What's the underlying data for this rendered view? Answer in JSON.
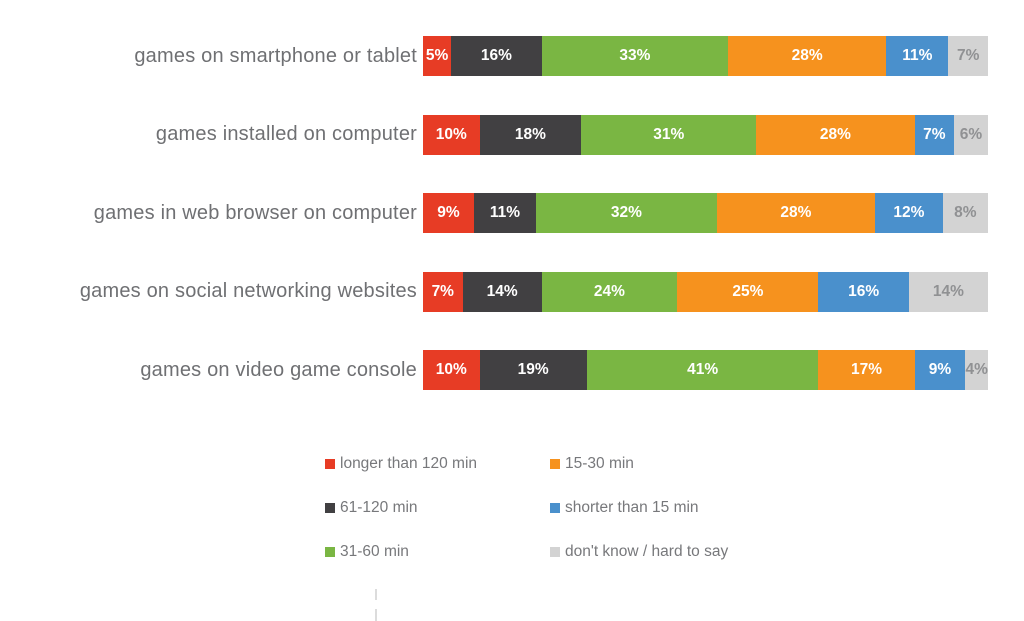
{
  "chart_data": {
    "type": "bar",
    "variant": "horizontal-stacked",
    "title": "",
    "xlabel": "",
    "ylabel": "",
    "xlim": [
      0,
      100
    ],
    "value_suffix": "%",
    "grid": false,
    "legend_position": "bottom-two-columns",
    "categories": [
      "games on smartphone or tablet",
      "games installed on computer",
      "games in web browser on computer",
      "games on social networking websites",
      "games on video game console"
    ],
    "series": [
      {
        "name": "longer than 120 min",
        "color": "#e73c25",
        "label_color": "#ffffff",
        "values": [
          5,
          10,
          9,
          7,
          10
        ]
      },
      {
        "name": "61-120 min",
        "color": "#414042",
        "label_color": "#ffffff",
        "values": [
          16,
          18,
          11,
          14,
          19
        ]
      },
      {
        "name": "31-60 min",
        "color": "#7ab643",
        "label_color": "#ffffff",
        "values": [
          33,
          31,
          32,
          24,
          41
        ]
      },
      {
        "name": "15-30 min",
        "color": "#f6921e",
        "label_color": "#ffffff",
        "values": [
          28,
          28,
          28,
          25,
          17
        ]
      },
      {
        "name": "shorter than 15 min",
        "color": "#4a90cc",
        "label_color": "#ffffff",
        "values": [
          11,
          7,
          12,
          16,
          9
        ]
      },
      {
        "name": "don't know / hard to say",
        "color": "#d3d3d3",
        "label_color": "#909193",
        "values": [
          7,
          6,
          8,
          14,
          4
        ]
      }
    ],
    "legend_row_major_series_indices": [
      0,
      3,
      1,
      4,
      2,
      5
    ]
  },
  "colors": {
    "background": "#ffffff",
    "category_label_text": "#6f7073",
    "legend_text": "#77787b",
    "tick_mark": "#dcdcdc"
  }
}
